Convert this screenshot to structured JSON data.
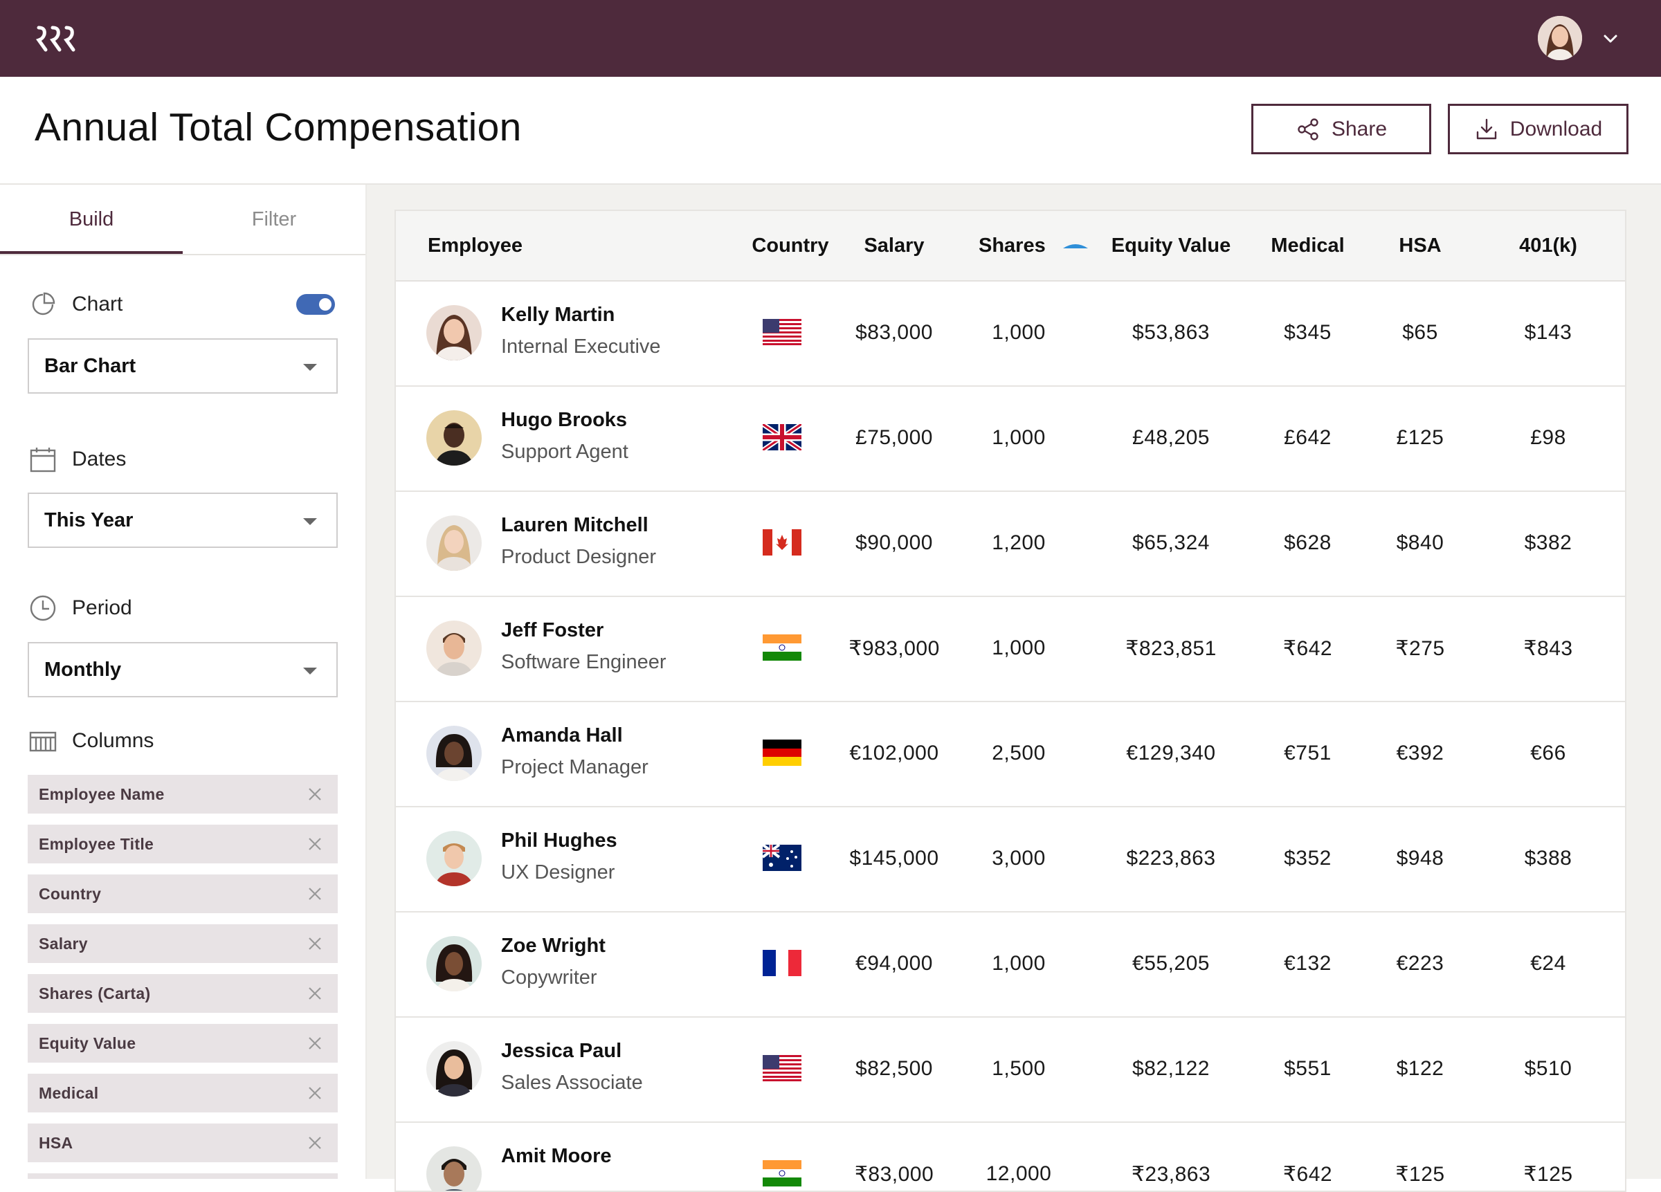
{
  "header": {
    "title": "Annual Total Compensation",
    "share_label": "Share",
    "download_label": "Download"
  },
  "sidebar": {
    "tabs": [
      {
        "label": "Build"
      },
      {
        "label": "Filter"
      }
    ],
    "active_tab": "Build",
    "chart": {
      "label": "Chart",
      "toggle_on": true,
      "select_value": "Bar Chart"
    },
    "dates": {
      "label": "Dates",
      "select_value": "This Year"
    },
    "period": {
      "label": "Period",
      "select_value": "Monthly"
    },
    "columns": {
      "label": "Columns",
      "chips": [
        "Employee Name",
        "Employee Title",
        "Country",
        "Salary",
        "Shares (Carta)",
        "Equity Value",
        "Medical",
        "HSA"
      ]
    }
  },
  "table": {
    "headers": [
      "Employee",
      "Country",
      "Salary",
      "Shares",
      "Equity Value",
      "Medical",
      "HSA",
      "401(k)"
    ],
    "sorted_column": "Shares",
    "rows": [
      {
        "name": "Kelly Martin",
        "title": "Internal Executive",
        "country": "United States",
        "salary": "$83,000",
        "shares": "1,000",
        "equity": "$53,863",
        "medical": "$345",
        "hsa": "$65",
        "k401": "$143"
      },
      {
        "name": "Hugo Brooks",
        "title": "Support Agent",
        "country": "United Kingdom",
        "salary": "£75,000",
        "shares": "1,000",
        "equity": "£48,205",
        "medical": "£642",
        "hsa": "£125",
        "k401": "£98"
      },
      {
        "name": "Lauren Mitchell",
        "title": "Product Designer",
        "country": "Canada",
        "salary": "$90,000",
        "shares": "1,200",
        "equity": "$65,324",
        "medical": "$628",
        "hsa": "$840",
        "k401": "$382"
      },
      {
        "name": "Jeff Foster",
        "title": "Software Engineer",
        "country": "India",
        "salary": "₹983,000",
        "shares": "1,000",
        "equity": "₹823,851",
        "medical": "₹642",
        "hsa": "₹275",
        "k401": "₹843"
      },
      {
        "name": "Amanda Hall",
        "title": "Project Manager",
        "country": "Germany",
        "salary": "€102,000",
        "shares": "2,500",
        "equity": "€129,340",
        "medical": "€751",
        "hsa": "€392",
        "k401": "€66"
      },
      {
        "name": "Phil Hughes",
        "title": "UX Designer",
        "country": "Australia",
        "salary": "$145,000",
        "shares": "3,000",
        "equity": "$223,863",
        "medical": "$352",
        "hsa": "$948",
        "k401": "$388"
      },
      {
        "name": "Zoe Wright",
        "title": "Copywriter",
        "country": "France",
        "salary": "€94,000",
        "shares": "1,000",
        "equity": "€55,205",
        "medical": "€132",
        "hsa": "€223",
        "k401": "€24"
      },
      {
        "name": "Jessica Paul",
        "title": "Sales Associate",
        "country": "United States",
        "salary": "$82,500",
        "shares": "1,500",
        "equity": "$82,122",
        "medical": "$551",
        "hsa": "$122",
        "k401": "$510"
      },
      {
        "name": "Amit Moore",
        "title": "",
        "country": "India",
        "salary": "₹83,000",
        "shares": "12,000",
        "equity": "₹23,863",
        "medical": "₹642",
        "hsa": "₹125",
        "k401": "₹125"
      }
    ]
  },
  "colors": {
    "brand": "#4e2a3c",
    "toggle": "#4069b5",
    "chip_bg": "#e8e3e5",
    "sort_indicator": "#2f8fd8"
  }
}
